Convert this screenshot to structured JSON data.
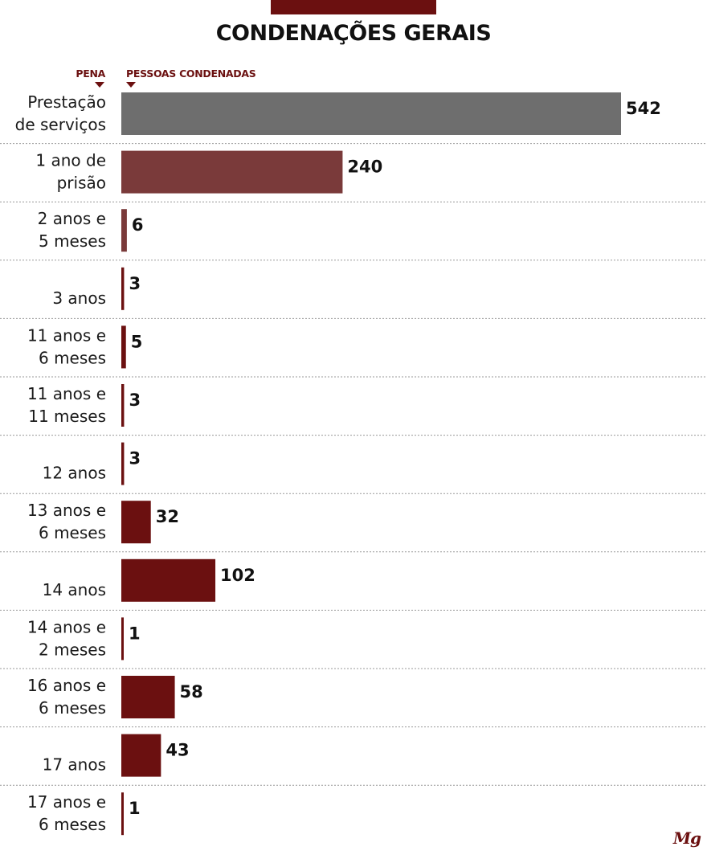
{
  "chart_data": {
    "type": "bar",
    "orientation": "horizontal",
    "title": "CONDENAÇÕES GERAIS",
    "category_header": "PENA",
    "value_header": "PESSOAS CONDENADAS",
    "categories": [
      [
        "Prestação",
        "de serviços"
      ],
      [
        "1 ano de",
        "prisão"
      ],
      [
        "2 anos e",
        "5 meses"
      ],
      [
        "3 anos"
      ],
      [
        "11 anos e",
        "6 meses"
      ],
      [
        "11 anos e",
        "11 meses"
      ],
      [
        "12 anos"
      ],
      [
        "13 anos e",
        "6 meses"
      ],
      [
        "14 anos"
      ],
      [
        "14 anos e",
        "2 meses"
      ],
      [
        "16 anos e",
        "6 meses"
      ],
      [
        "17 anos"
      ],
      [
        "17 anos e",
        "6 meses"
      ]
    ],
    "values": [
      542,
      240,
      6,
      3,
      5,
      3,
      3,
      32,
      102,
      1,
      58,
      43,
      1
    ],
    "bar_colors": [
      "#6e6e6e",
      "#7a3a3a",
      "#7a3a3a",
      "#6b1010",
      "#6b1010",
      "#6b1010",
      "#6b1010",
      "#6b1010",
      "#6b1010",
      "#6b1010",
      "#6b1010",
      "#6b1010",
      "#6b1010"
    ],
    "xlim": [
      0,
      542
    ],
    "grid": false,
    "legend": "none"
  },
  "colors": {
    "accent": "#6b1010",
    "separator": "#999999"
  },
  "logo": {
    "text": "Mg"
  }
}
